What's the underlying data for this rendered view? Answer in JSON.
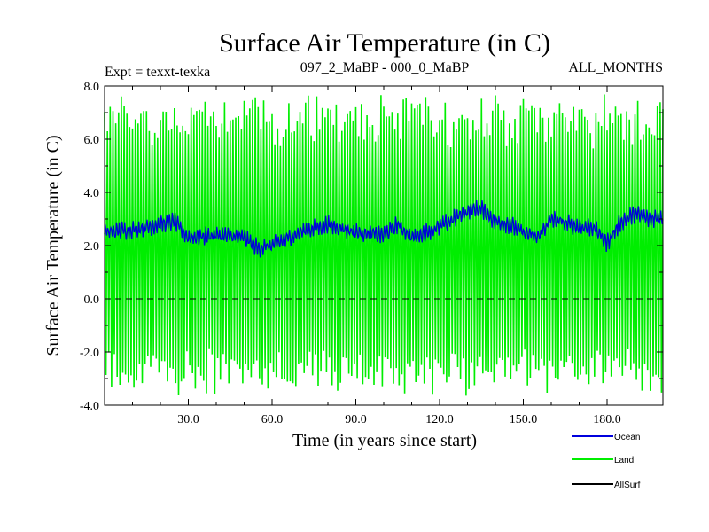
{
  "chart_data": {
    "type": "line",
    "title": "Surface Air Temperature (in C)",
    "subtitle_left": "Expt = texxt-texka",
    "subtitle_center": "097_2_MaBP - 000_0_MaBP",
    "subtitle_right": "ALL_MONTHS",
    "xlabel": "Time (in years since start)",
    "ylabel": "Surface Air Temperature (in C)",
    "xlim": [
      0,
      200
    ],
    "ylim": [
      -4,
      8
    ],
    "x_ticks": [
      30,
      60,
      90,
      120,
      150,
      180
    ],
    "x_tick_labels": [
      "30.0",
      "60.0",
      "90.0",
      "120.0",
      "150.0",
      "180.0"
    ],
    "y_ticks": [
      -4,
      -2,
      0,
      2,
      4,
      6,
      8
    ],
    "y_tick_labels": [
      "-4.0",
      "-2.0",
      "0.0",
      "2.0",
      "4.0",
      "6.0",
      "8.0"
    ],
    "zero_line": {
      "value": 0,
      "style": "dashed"
    },
    "legend_position": "bottom-right, outside plot",
    "series": [
      {
        "name": "Land",
        "color": "#00ee00",
        "description": "monthly values oscillating roughly between -3.5 and 7.5 around a mean of about 2.0",
        "mean": 2.0,
        "typical_max": 7.0,
        "typical_min": -3.0
      },
      {
        "name": "Ocean",
        "color": "#0000dd",
        "x": [
          0,
          10,
          20,
          25,
          30,
          40,
          50,
          55,
          60,
          70,
          80,
          90,
          100,
          105,
          110,
          120,
          125,
          130,
          135,
          140,
          145,
          150,
          155,
          160,
          170,
          175,
          180,
          185,
          190,
          195,
          200
        ],
        "y": [
          2.5,
          2.6,
          2.8,
          2.9,
          2.3,
          2.4,
          2.3,
          1.9,
          2.0,
          2.5,
          2.8,
          2.5,
          2.4,
          2.8,
          2.3,
          2.7,
          3.0,
          3.3,
          3.4,
          2.9,
          2.8,
          2.5,
          2.3,
          3.0,
          2.7,
          2.7,
          2.1,
          2.9,
          3.2,
          3.0,
          3.1
        ]
      },
      {
        "name": "AllSurf",
        "color": "#000000",
        "values": []
      }
    ]
  }
}
